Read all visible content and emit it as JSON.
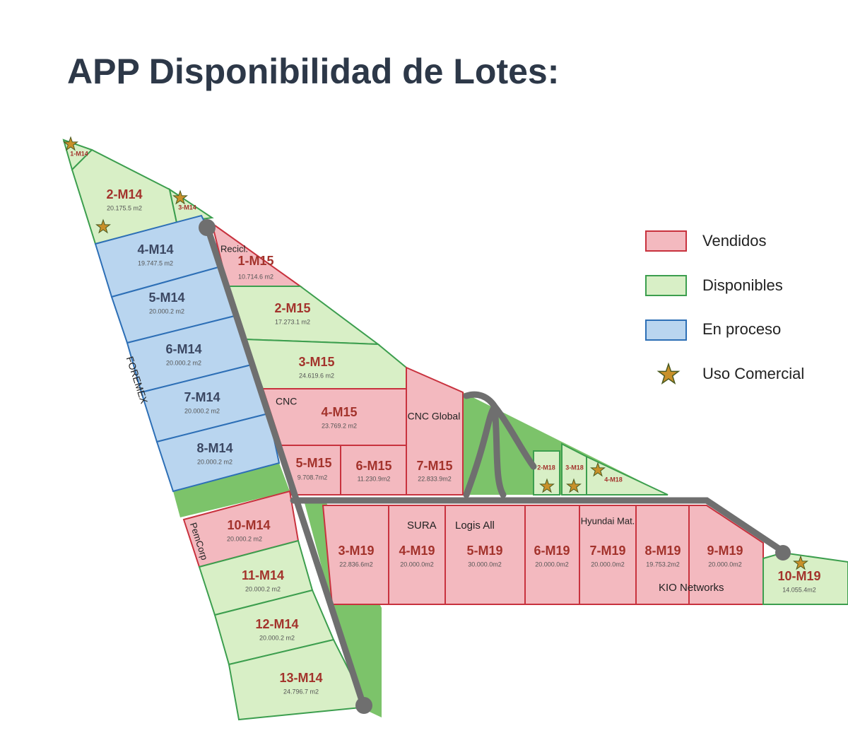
{
  "title": "APP Disponibilidad de Lotes:",
  "legend": [
    "Vendidos",
    "Disponibles",
    "En proceso",
    "Uso Comercial"
  ],
  "lots": [
    {
      "name": "1-M14"
    },
    {
      "name": "2-M14",
      "area": "20.175.5 m2"
    },
    {
      "name": "3-M14"
    },
    {
      "name": "4-M14",
      "area": "19.747.5 m2"
    },
    {
      "name": "5-M14",
      "area": "20.000.2 m2"
    },
    {
      "name": "6-M14",
      "area": "20.000.2 m2"
    },
    {
      "name": "7-M14",
      "area": "20.000.2 m2"
    },
    {
      "name": "8-M14",
      "area": "20.000.2 m2"
    },
    {
      "name": "10-M14",
      "area": "20.000.2 m2"
    },
    {
      "name": "11-M14",
      "area": "20.000.2 m2"
    },
    {
      "name": "12-M14",
      "area": "20.000.2 m2"
    },
    {
      "name": "13-M14",
      "area": "24.796.7 m2"
    },
    {
      "name": "1-M15",
      "area": "10.714.6 m2"
    },
    {
      "name": "2-M15",
      "area": "17.273.1 m2"
    },
    {
      "name": "3-M15",
      "area": "24.619.6 m2"
    },
    {
      "name": "4-M15",
      "area": "23.769.2 m2"
    },
    {
      "name": "5-M15",
      "area": "9.708.7m2"
    },
    {
      "name": "6-M15",
      "area": "11.230.9m2"
    },
    {
      "name": "7-M15",
      "area": "22.833.9m2"
    },
    {
      "name": "2-M18"
    },
    {
      "name": "3-M18"
    },
    {
      "name": "4-M18"
    },
    {
      "name": "3-M19",
      "area": "22.836.6m2"
    },
    {
      "name": "4-M19",
      "area": "20.000.0m2"
    },
    {
      "name": "5-M19",
      "area": "30.000.0m2"
    },
    {
      "name": "6-M19",
      "area": "20.000.0m2"
    },
    {
      "name": "7-M19",
      "area": "20.000.0m2"
    },
    {
      "name": "8-M19",
      "area": "19.753.2m2"
    },
    {
      "name": "9-M19",
      "area": "20.000.0m2"
    },
    {
      "name": "10-M19",
      "area": "14.055.4m2"
    }
  ],
  "tenants": [
    "Recicl.",
    "FOREMEX",
    "CNC",
    "CNC Global",
    "PemCorp",
    "SURA",
    "Logis All",
    "Hyundai Mat.",
    "KIO Networks"
  ]
}
